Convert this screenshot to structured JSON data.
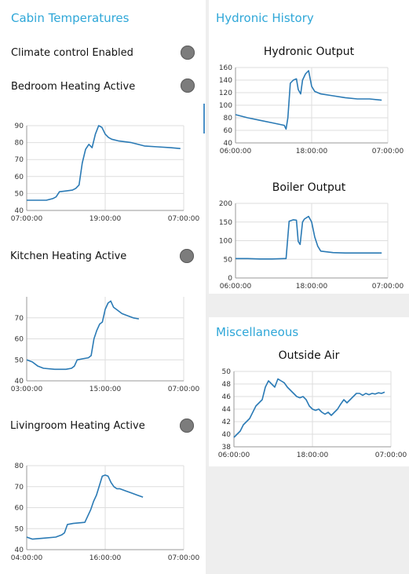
{
  "cabin": {
    "title": "Cabin Temperatures",
    "climate_label": "Climate control Enabled",
    "bedroom_label": "Bedroom Heating Active",
    "kitchen_label": "Kitchen Heating Active",
    "living_label": "Livingroom Heating Active"
  },
  "hydronic": {
    "title": "Hydronic History",
    "output_title": "Hydronic Output",
    "boiler_title": "Boiler Output"
  },
  "misc": {
    "title": "Miscellaneous",
    "outside_title": "Outside Air"
  },
  "colors": {
    "line": "#2a7ab5",
    "accent": "#2fa7d8",
    "led_off": "#7c7c7c"
  },
  "chart_data": [
    {
      "id": "bedroom",
      "type": "line",
      "x_ticks": [
        "07:00:00",
        "19:00:00",
        "07:00:00"
      ],
      "y_ticks": [
        "40",
        "50",
        "60",
        "70",
        "80",
        "90"
      ],
      "ylim": [
        40,
        90
      ],
      "xlim": [
        0,
        24
      ],
      "series": [
        {
          "x": [
            0,
            2,
            3,
            4,
            4.5,
            5,
            6,
            7,
            7.5,
            8,
            8.5,
            9,
            9.5,
            10,
            10.5,
            11,
            11.5,
            12,
            12.5,
            13,
            14,
            16,
            18,
            20,
            22,
            23.5
          ],
          "y": [
            46,
            46,
            46,
            47,
            48,
            51,
            51.5,
            52,
            53,
            55,
            68,
            76,
            79,
            77,
            85,
            90,
            89,
            85,
            83,
            82,
            81,
            80,
            78,
            77.5,
            77,
            76.5
          ]
        }
      ]
    },
    {
      "id": "kitchen",
      "type": "line",
      "x_ticks": [
        "03:00:00",
        "15:00:00",
        "07:00:00"
      ],
      "y_ticks": [
        "40",
        "50",
        "60",
        "70"
      ],
      "ylim": [
        40,
        80
      ],
      "xlim": [
        0,
        28
      ],
      "series": [
        {
          "x": [
            0,
            1,
            2,
            3,
            5,
            7,
            8,
            8.5,
            9,
            10,
            11,
            11.5,
            12,
            12.5,
            13,
            13.5,
            14,
            14.5,
            15,
            15.5,
            16,
            17,
            18,
            19,
            20
          ],
          "y": [
            50,
            49,
            47,
            46,
            45.5,
            45.5,
            46,
            47,
            50,
            50.5,
            51,
            52,
            60,
            64,
            67,
            68,
            74,
            77,
            78,
            75,
            74,
            72,
            71,
            70,
            69.5
          ]
        }
      ]
    },
    {
      "id": "livingroom",
      "type": "line",
      "x_ticks": [
        "04:00:00",
        "16:00:00",
        "07:00:00"
      ],
      "y_ticks": [
        "40",
        "50",
        "60",
        "70",
        "80"
      ],
      "ylim": [
        40,
        80
      ],
      "xlim": [
        0,
        27
      ],
      "series": [
        {
          "x": [
            0,
            1,
            3,
            5,
            6,
            6.5,
            7,
            8,
            10,
            11,
            11.5,
            12,
            13,
            13.5,
            14,
            14.5,
            15,
            15.5,
            16,
            17,
            18,
            19,
            20
          ],
          "y": [
            46,
            45,
            45.5,
            46,
            47,
            48,
            52,
            52.5,
            53,
            59,
            63,
            66,
            75,
            75.5,
            75,
            72,
            70,
            69,
            69,
            68,
            67,
            66,
            65
          ]
        }
      ]
    },
    {
      "id": "hydronic-output",
      "type": "line",
      "x_ticks": [
        "06:00:00",
        "18:00:00",
        "07:00:00"
      ],
      "y_ticks": [
        "40",
        "60",
        "80",
        "100",
        "120",
        "140",
        "160"
      ],
      "ylim": [
        40,
        160
      ],
      "xlim": [
        0,
        25
      ],
      "series": [
        {
          "x": [
            0,
            2,
            4,
            6,
            8,
            8.3,
            8.6,
            9,
            9.5,
            10,
            10.3,
            10.7,
            11,
            11.5,
            12,
            12.5,
            13,
            14,
            16,
            18,
            20,
            22,
            24
          ],
          "y": [
            85,
            80,
            76,
            72,
            68,
            62,
            80,
            135,
            140,
            142,
            125,
            118,
            140,
            150,
            155,
            130,
            122,
            118,
            115,
            112,
            110,
            110,
            108
          ]
        }
      ]
    },
    {
      "id": "boiler-output",
      "type": "line",
      "x_ticks": [
        "06:00:00",
        "18:00:00",
        "07:00:00"
      ],
      "y_ticks": [
        "0",
        "50",
        "100",
        "150",
        "200"
      ],
      "ylim": [
        0,
        200
      ],
      "xlim": [
        0,
        25
      ],
      "series": [
        {
          "x": [
            0,
            2,
            4,
            6,
            8,
            8.3,
            8.8,
            9.5,
            10,
            10.3,
            10.6,
            11,
            11.3,
            12,
            12.5,
            13,
            13.5,
            14,
            16,
            18,
            20,
            22,
            24
          ],
          "y": [
            52,
            52,
            51,
            51,
            52,
            52,
            152,
            156,
            155,
            98,
            90,
            150,
            158,
            165,
            150,
            110,
            85,
            72,
            68,
            67,
            67,
            67,
            67
          ]
        }
      ]
    },
    {
      "id": "outside-air",
      "type": "line",
      "x_ticks": [
        "06:00:00",
        "18:00:00",
        "07:00:00"
      ],
      "y_ticks": [
        "38",
        "40",
        "42",
        "44",
        "46",
        "48",
        "50"
      ],
      "ylim": [
        38,
        50
      ],
      "xlim": [
        0,
        25
      ],
      "series": [
        {
          "x": [
            0,
            0.5,
            1,
            1.5,
            2,
            2.5,
            3,
            3.5,
            4,
            4.5,
            5,
            5.5,
            6,
            6.5,
            7,
            7.5,
            8,
            8.5,
            9,
            9.5,
            10,
            10.5,
            11,
            11.5,
            12,
            12.5,
            13,
            13.5,
            14,
            14.5,
            15,
            15.5,
            16,
            16.5,
            17,
            17.5,
            18,
            18.5,
            19,
            19.5,
            20,
            20.5,
            21,
            21.5,
            22,
            22.5,
            23,
            23.5,
            24
          ],
          "y": [
            39.5,
            40,
            40.5,
            41.5,
            42,
            42.5,
            43.5,
            44.5,
            45,
            45.5,
            47.5,
            48.5,
            48,
            47.5,
            48.8,
            48.5,
            48.2,
            47.5,
            47,
            46.5,
            46,
            45.8,
            46,
            45.5,
            44.5,
            44,
            43.8,
            44,
            43.5,
            43.2,
            43.5,
            43,
            43.5,
            44,
            44.8,
            45.5,
            45,
            45.5,
            46,
            46.5,
            46.5,
            46.2,
            46.5,
            46.3,
            46.5,
            46.4,
            46.6,
            46.5,
            46.7
          ]
        }
      ]
    }
  ]
}
